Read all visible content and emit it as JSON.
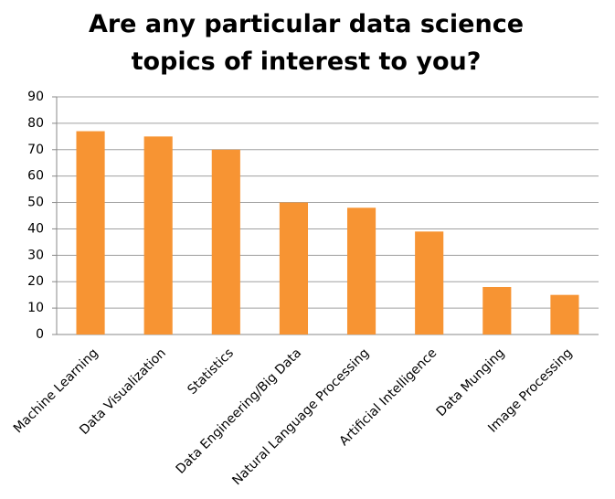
{
  "chart_data": {
    "type": "bar",
    "title": "Are any particular data science topics of interest to you?",
    "categories": [
      "Machine Learning",
      "Data Visualization",
      "Statistics",
      "Data Engineering/Big Data",
      "Natural Language Processing",
      "Artificial Intelligence",
      "Data Munging",
      "Image Processing"
    ],
    "values": [
      77,
      75,
      70,
      50,
      48,
      39,
      18,
      15
    ],
    "color": "#f79433",
    "ylim": [
      0,
      90
    ],
    "yticks": [
      0,
      10,
      20,
      30,
      40,
      50,
      60,
      70,
      80,
      90
    ],
    "grid": true
  }
}
